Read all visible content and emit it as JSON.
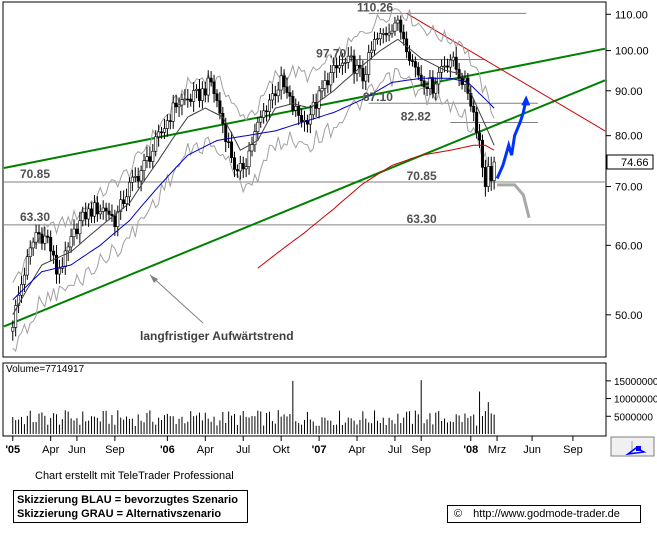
{
  "chart_data": [
    {
      "type": "candlestick",
      "title": "",
      "ylim": [
        45,
        113
      ],
      "y_scale": "log",
      "y_ticks": [
        "110.00",
        "100.00",
        "90.00",
        "80.00",
        "70.00",
        "60.00",
        "50.00"
      ],
      "y_tick_values": [
        110,
        100,
        90,
        80,
        70,
        60,
        50
      ],
      "x_tick_labels": [
        "'05",
        "Apr",
        "Jun",
        "Sep",
        "'06",
        "Apr",
        "Jul",
        "Okt",
        "'07",
        "Apr",
        "Jul",
        "Sep",
        "'08",
        "Mrz",
        "Jun",
        "Sep"
      ],
      "x_tick_index": [
        0,
        13,
        22,
        35,
        53,
        66,
        79,
        92,
        105,
        118,
        131,
        140,
        157,
        166,
        178,
        192
      ],
      "x_range_weeks": [
        -3,
        203
      ],
      "last_price": "74.66",
      "last_price_value": 74.66,
      "price_labels": [
        {
          "text": "110.26",
          "value": 110.26
        },
        {
          "text": "97.70",
          "value": 97.7
        },
        {
          "text": "87.10",
          "value": 87.1
        },
        {
          "text": "82.82",
          "value": 82.82
        },
        {
          "text": "70.85",
          "value": 70.85
        },
        {
          "text": "63.30",
          "value": 63.3
        },
        {
          "text": "70.85",
          "value": 70.85
        },
        {
          "text": "63.30",
          "value": 63.3
        }
      ],
      "annotation": "langfristiger Aufwärtstrend",
      "price_anchors": [
        [
          0,
          49
        ],
        [
          4,
          56
        ],
        [
          8,
          62
        ],
        [
          12,
          61
        ],
        [
          15,
          56
        ],
        [
          18,
          58
        ],
        [
          22,
          63
        ],
        [
          25,
          65
        ],
        [
          28,
          66
        ],
        [
          32,
          66
        ],
        [
          35,
          64
        ],
        [
          40,
          70
        ],
        [
          44,
          73
        ],
        [
          48,
          77
        ],
        [
          52,
          82
        ],
        [
          56,
          87
        ],
        [
          60,
          88
        ],
        [
          64,
          89
        ],
        [
          68,
          92
        ],
        [
          71,
          85
        ],
        [
          74,
          78
        ],
        [
          77,
          72
        ],
        [
          80,
          75
        ],
        [
          84,
          82
        ],
        [
          88,
          88
        ],
        [
          92,
          92
        ],
        [
          96,
          86
        ],
        [
          100,
          83
        ],
        [
          104,
          87
        ],
        [
          108,
          93
        ],
        [
          112,
          96
        ],
        [
          116,
          97
        ],
        [
          120,
          93
        ],
        [
          124,
          102
        ],
        [
          128,
          105
        ],
        [
          131,
          108
        ],
        [
          134,
          104
        ],
        [
          137,
          97
        ],
        [
          140,
          93
        ],
        [
          144,
          91
        ],
        [
          147,
          96
        ],
        [
          150,
          98
        ],
        [
          153,
          94
        ],
        [
          156,
          90
        ],
        [
          158,
          85
        ],
        [
          160,
          79
        ],
        [
          161,
          74
        ],
        [
          162,
          71
        ],
        [
          163,
          73
        ],
        [
          164,
          72
        ],
        [
          165,
          74.66
        ]
      ],
      "ma_fast_anchors": [
        [
          0,
          50
        ],
        [
          10,
          57
        ],
        [
          20,
          59
        ],
        [
          30,
          63
        ],
        [
          40,
          67
        ],
        [
          50,
          75
        ],
        [
          60,
          84
        ],
        [
          66,
          86
        ],
        [
          72,
          84
        ],
        [
          78,
          77
        ],
        [
          84,
          79
        ],
        [
          90,
          86
        ],
        [
          96,
          87
        ],
        [
          102,
          86
        ],
        [
          110,
          90
        ],
        [
          118,
          95
        ],
        [
          126,
          100
        ],
        [
          132,
          103
        ],
        [
          140,
          98
        ],
        [
          148,
          95
        ],
        [
          154,
          94
        ],
        [
          160,
          85
        ],
        [
          165,
          78
        ]
      ],
      "ma_mid_anchors": [
        [
          0,
          52
        ],
        [
          10,
          56
        ],
        [
          20,
          57
        ],
        [
          30,
          60
        ],
        [
          40,
          64
        ],
        [
          50,
          70
        ],
        [
          60,
          76
        ],
        [
          70,
          79
        ],
        [
          80,
          80
        ],
        [
          90,
          81
        ],
        [
          100,
          83
        ],
        [
          110,
          85
        ],
        [
          120,
          88
        ],
        [
          130,
          92
        ],
        [
          140,
          93
        ],
        [
          150,
          93
        ],
        [
          156,
          92
        ],
        [
          162,
          88
        ],
        [
          165,
          86
        ]
      ],
      "ma_slow_anchors": [
        [
          84,
          56.5
        ],
        [
          100,
          62
        ],
        [
          110,
          66
        ],
        [
          120,
          70.5
        ],
        [
          130,
          74
        ],
        [
          140,
          76
        ],
        [
          150,
          77
        ],
        [
          158,
          78
        ],
        [
          162,
          78
        ],
        [
          165,
          77
        ]
      ],
      "upper_trend": [
        [
          -3,
          73.5
        ],
        [
          203,
          100.5
        ]
      ],
      "lower_trend": [
        [
          -3,
          48.5
        ],
        [
          203,
          92.5
        ]
      ],
      "red_resistance": [
        [
          135,
          110.26
        ],
        [
          203,
          81
        ]
      ],
      "horizontal_lines": [
        {
          "value": 110.26,
          "from": 122,
          "to": 176
        },
        {
          "value": 97.7,
          "from": 112,
          "to": 162
        },
        {
          "value": 87.1,
          "from": 122,
          "to": 180
        },
        {
          "value": 82.82,
          "from": 150,
          "to": 180
        },
        {
          "value": 70.85,
          "from": -3,
          "to": 203
        },
        {
          "value": 63.3,
          "from": -3,
          "to": 203
        }
      ],
      "blue_scenario": [
        [
          166,
          71.5
        ],
        [
          168,
          74
        ],
        [
          170,
          78
        ],
        [
          171,
          76
        ],
        [
          172,
          80
        ],
        [
          174,
          83
        ],
        [
          175,
          85
        ],
        [
          176,
          88
        ]
      ],
      "gray_scenario": [
        [
          166,
          70.3
        ],
        [
          172,
          70.3
        ],
        [
          175,
          68.5
        ],
        [
          177,
          64.5
        ]
      ],
      "bollinger_width": 0.11
    },
    {
      "type": "bar",
      "title": "Volume=7714917",
      "ylim": [
        0,
        17500000
      ],
      "y_ticks": [
        "15000000",
        "10000000",
        "5000000"
      ],
      "y_tick_values": [
        15000000,
        10000000,
        5000000
      ],
      "base_volume": 4500000,
      "spikes": [
        {
          "i": 96,
          "v": 15000000
        },
        {
          "i": 140,
          "v": 15200000
        },
        {
          "i": 160,
          "v": 12000000
        },
        {
          "i": 163,
          "v": 9000000
        }
      ]
    }
  ],
  "footer": {
    "credit": "Chart erstellt mit TeleTrader Professional",
    "legend_line1": "Skizzierung BLAU = bevorzugtes Szenario",
    "legend_line2": "Skizzierung GRAU = Alternativszenario",
    "copyright_symbol": "©",
    "url": "http://www.godmode-trader.de"
  },
  "colors": {
    "upper_channel": "#008000",
    "lower_channel": "#008000",
    "ma_fast": "#404040",
    "ma_mid": "#0000c0",
    "ma_slow": "#cc0000",
    "resistance": "#cc0000",
    "bollinger": "#a0a0a0",
    "reference_lines": "#808080",
    "blue_scenario": "#0033ff",
    "gray_scenario": "#a8a8a8",
    "volume": "#000000"
  }
}
